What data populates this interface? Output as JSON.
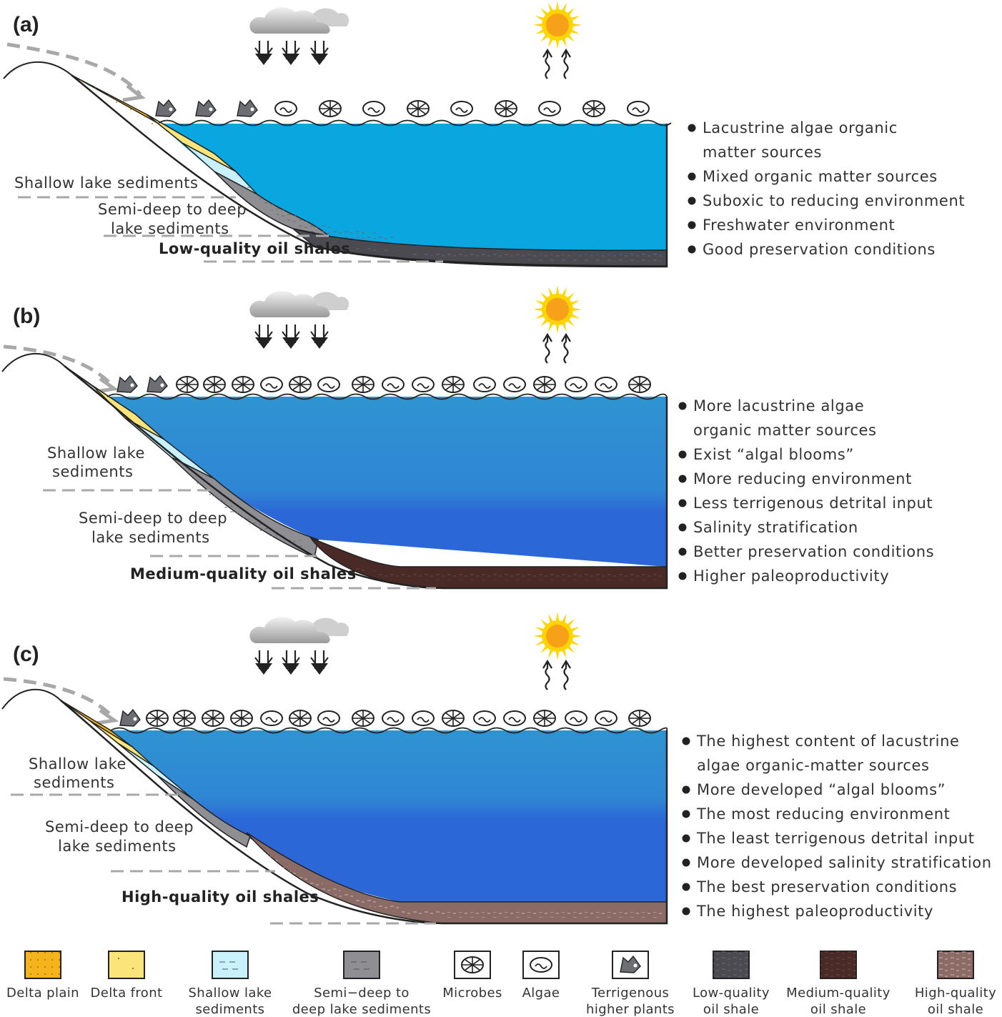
{
  "colors": {
    "delta_plain": "#f5b41b",
    "delta_front": "#fbe57a",
    "shallow_lake": "#c8f1fb",
    "semi_deep": "#8f8f93",
    "low_quality": "#4a4a50",
    "medium_quality": "#4a2a27",
    "high_quality": "#8a6b66",
    "water_a": "#0aa6df",
    "water_b_top": "#2f93d1",
    "water_b_bottom": "#2b67d6",
    "sun": "#ffd400",
    "arrow_gray": "#a8a8a8"
  },
  "panels": [
    {
      "label": "(a)",
      "shallow_label": [
        "Shallow lake sediments"
      ],
      "deep_label": [
        "Semi-deep to deep",
        "lake sediments"
      ],
      "quality_label": "Low-quality oil shales",
      "bullets": [
        "Lacustrine algae organic",
        "matter sources",
        "Mixed organic matter sources",
        "Suboxic to reducing environment",
        "Freshwater environment",
        "Good preservation conditions"
      ]
    },
    {
      "label": "(b)",
      "shallow_label": [
        "Shallow lake",
        "sediments"
      ],
      "deep_label": [
        "Semi-deep to deep",
        "lake sediments"
      ],
      "quality_label": "Medium-quality oil shales",
      "bullets": [
        "More lacustrine algae",
        "organic matter sources",
        "Exist “algal blooms”",
        "More reducing  environment",
        "Less terrigenous detrital input",
        "Salinity stratification",
        "Better preservation conditions",
        "Higher paleoproductivity"
      ]
    },
    {
      "label": "(c)",
      "shallow_label": [
        "Shallow lake",
        "sediments"
      ],
      "deep_label": [
        "Semi-deep to deep",
        "lake sediments"
      ],
      "quality_label": "High-quality oil shales",
      "bullets": [
        "The highest content of lacustrine",
        "algae organic-matter sources",
        "More developed  “algal blooms”",
        "The most reducing  environment",
        "The least terrigenous detrital input",
        "More developed  salinity stratification",
        "The best preservation conditions",
        "The highest paleoproductivity"
      ]
    }
  ],
  "legend": [
    {
      "icon": "delta-plain-swatch",
      "lines": [
        "Delta  plain"
      ]
    },
    {
      "icon": "delta-front-swatch",
      "lines": [
        "Delta  front"
      ]
    },
    {
      "icon": "shallow-lake-swatch",
      "lines": [
        "Shallow lake",
        "sediments"
      ]
    },
    {
      "icon": "semi-deep-swatch",
      "lines": [
        "Semi−deep  to",
        "deep lake  sediments"
      ]
    },
    {
      "icon": "microbes-icon",
      "lines": [
        "Microbes"
      ]
    },
    {
      "icon": "algae-icon",
      "lines": [
        "Algae"
      ]
    },
    {
      "icon": "terrigenous-plant-icon",
      "lines": [
        "Terrigenous",
        "higher plants"
      ]
    },
    {
      "icon": "low-quality-swatch",
      "lines": [
        "Low-quality",
        "oil shale"
      ]
    },
    {
      "icon": "medium-quality-swatch",
      "lines": [
        "Medium-quality",
        "oil shale"
      ]
    },
    {
      "icon": "high-quality-swatch",
      "lines": [
        "High-quality",
        "oil shale"
      ]
    }
  ]
}
